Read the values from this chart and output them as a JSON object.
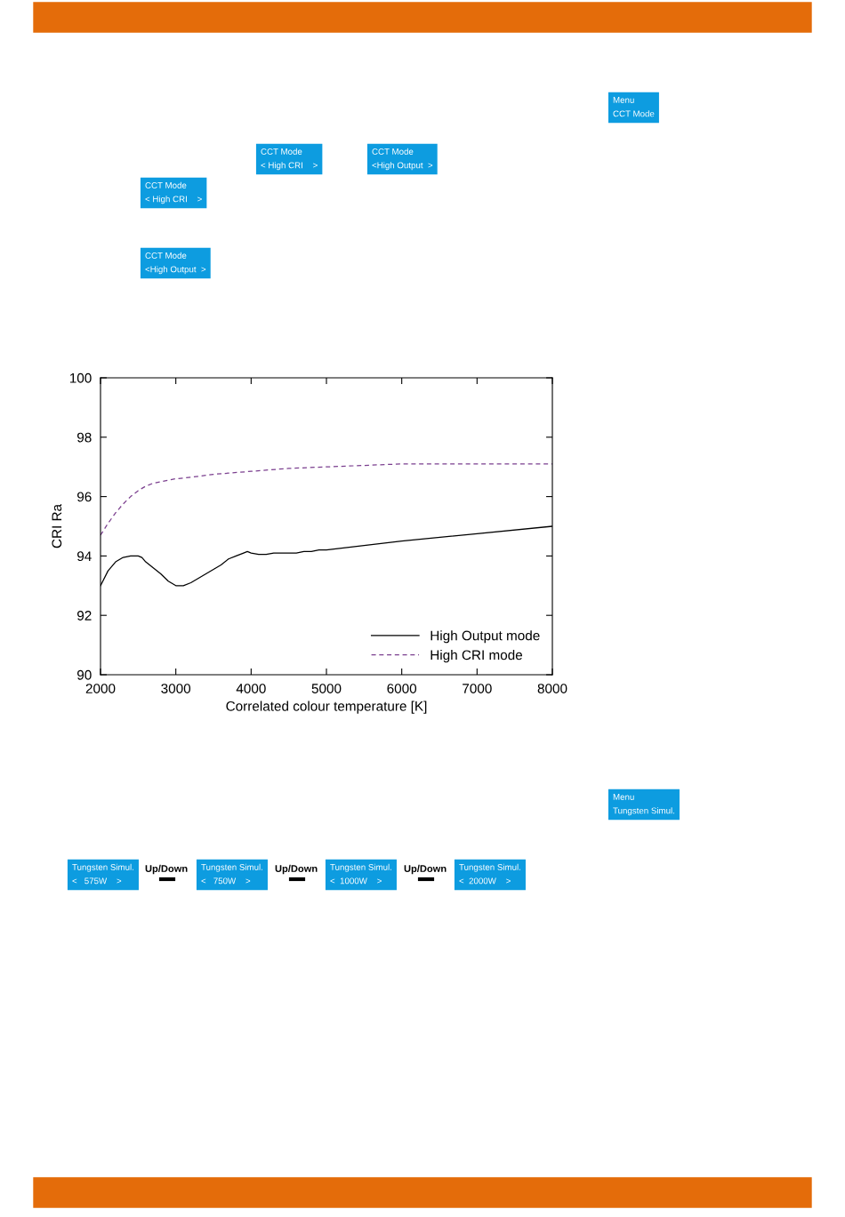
{
  "chart_data": {
    "type": "line",
    "xlabel": "Correlated colour temperature [K]",
    "ylabel": "CRI Ra",
    "xlim": [
      2000,
      8000
    ],
    "xticks": [
      2000,
      3000,
      4000,
      5000,
      6000,
      7000,
      8000
    ],
    "ylim": [
      90,
      100
    ],
    "yticks": [
      90,
      92,
      94,
      96,
      98,
      100
    ],
    "grid": false,
    "legend": "bottom right",
    "series": [
      {
        "name": "High Output mode",
        "color": "#000000",
        "line_style": "solid",
        "x": [
          2000,
          2100,
          2200,
          2300,
          2400,
          2500,
          2550,
          2600,
          2700,
          2800,
          2900,
          3000,
          3100,
          3200,
          3300,
          3400,
          3500,
          3600,
          3700,
          3800,
          3900,
          3950,
          4000,
          4100,
          4200,
          4300,
          4400,
          4500,
          4600,
          4700,
          4800,
          4900,
          5000,
          6000,
          7000,
          8000
        ],
        "values": [
          93.0,
          93.5,
          93.8,
          93.95,
          94.0,
          94.0,
          93.95,
          93.8,
          93.6,
          93.4,
          93.15,
          93.0,
          93.0,
          93.1,
          93.25,
          93.4,
          93.55,
          93.7,
          93.9,
          94.0,
          94.1,
          94.15,
          94.1,
          94.05,
          94.05,
          94.1,
          94.1,
          94.1,
          94.1,
          94.15,
          94.15,
          94.2,
          94.2,
          94.5,
          94.75,
          95.0
        ]
      },
      {
        "name": "High CRI mode",
        "color": "#7b3f8f",
        "line_style": "dashed",
        "x": [
          2000,
          2100,
          2200,
          2300,
          2400,
          2500,
          2600,
          2700,
          2800,
          2900,
          3000,
          3200,
          3500,
          4000,
          4500,
          5000,
          5500,
          6000,
          7000,
          8000
        ],
        "values": [
          94.7,
          95.1,
          95.45,
          95.75,
          96.0,
          96.2,
          96.35,
          96.45,
          96.5,
          96.55,
          96.6,
          96.65,
          96.75,
          96.85,
          96.95,
          97.0,
          97.05,
          97.1,
          97.1,
          97.1
        ]
      }
    ],
    "annotations": [
      "Menu\nCCT Mode",
      "CCT Mode\n< High CRI    >",
      "CCT Mode\n<High Output  >",
      "CCT Mode\n< High CRI    >",
      "CCT Mode\n<High Output  >",
      "Menu\nTungsten Simul.",
      "Tungsten Simul.\n<   575W    >",
      "Up/Down",
      "Tungsten Simul.\n<   750W    >",
      "Up/Down",
      "Tungsten Simul.\n<  1000W    >",
      "Up/Down",
      "Tungsten Simul.\n<  2000W    >"
    ]
  }
}
